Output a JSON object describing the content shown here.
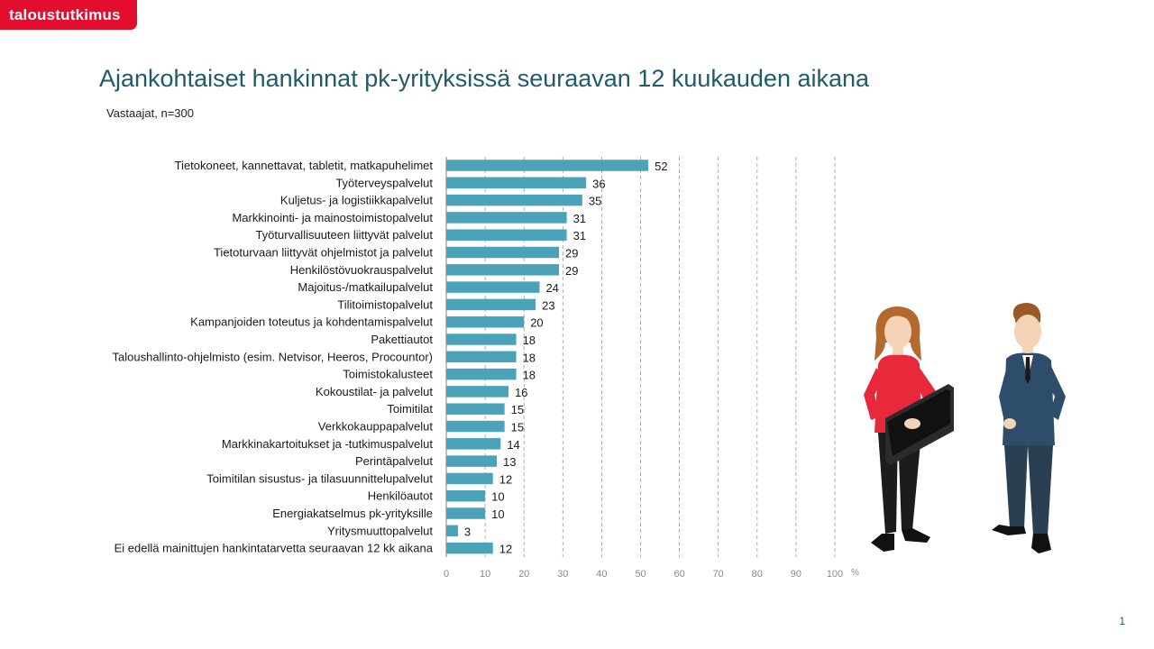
{
  "header": {
    "logo_text": "taloustutkimus",
    "title": "Ajankohtaiset hankinnat pk-yrityksissä seuraavan 12 kuukauden aikana",
    "subtitle": "Vastaajat, n=300",
    "page_number": "1"
  },
  "colors": {
    "brand_red": "#e30d2d",
    "bar": "#4aa3b9",
    "title": "#1f5b6a"
  },
  "illustration": {
    "icon": "business-people-icon"
  },
  "chart_data": {
    "type": "bar",
    "orientation": "horizontal",
    "categories": [
      "Tietokoneet, kannettavat, tabletit, matkapuhelimet",
      "Työterveyspalvelut",
      "Kuljetus- ja logistiikkapalvelut",
      "Markkinointi- ja mainostoimistopalvelut",
      "Työturvallisuuteen liittyvät palvelut",
      "Tietoturvaan liittyvät ohjelmistot ja palvelut",
      "Henkilöstövuokrauspalvelut",
      "Majoitus-/matkailupalvelut",
      "Tilitoimistopalvelut",
      "Kampanjoiden toteutus ja kohdentamispalvelut",
      "Pakettiautot",
      "Taloushallinto-ohjelmisto (esim. Netvisor, Heeros, Procountor)",
      "Toimistokalusteet",
      "Kokoustilat- ja palvelut",
      "Toimitilat",
      "Verkkokauppapalvelut",
      "Markkinakartoitukset ja -tutkimuspalvelut",
      "Perintäpalvelut",
      "Toimitilan sisustus- ja tilasuunnittelupalvelut",
      "Henkilöautot",
      "Energiakatselmus pk-yrityksille",
      "Yritysmuuttopalvelut",
      "Ei edellä mainittujen hankintatarvetta seuraavan 12 kk aikana"
    ],
    "values": [
      52,
      36,
      35,
      31,
      31,
      29,
      29,
      24,
      23,
      20,
      18,
      18,
      18,
      16,
      15,
      15,
      14,
      13,
      12,
      10,
      10,
      3,
      12
    ],
    "xlim": [
      0,
      100
    ],
    "xticks": [
      0,
      10,
      20,
      30,
      40,
      50,
      60,
      70,
      80,
      90,
      100
    ],
    "unit_label": "%",
    "grid": "dashed-vertical"
  }
}
